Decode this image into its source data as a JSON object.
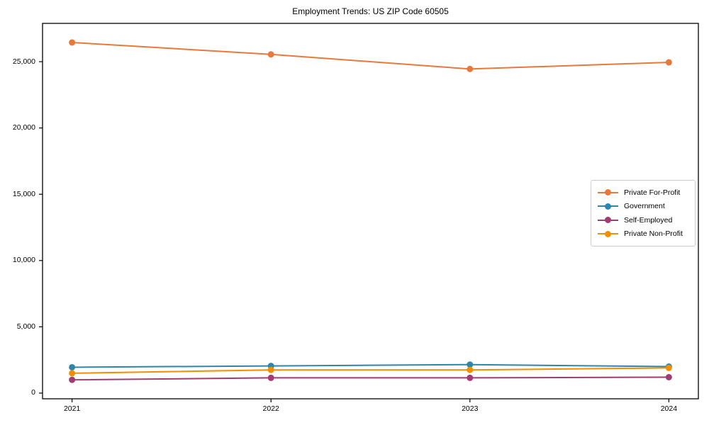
{
  "title": "Employment Trends: US ZIP Code 60505",
  "chart_data": {
    "type": "line",
    "title": "Employment Trends: US ZIP Code 60505",
    "xlabel": "",
    "ylabel": "",
    "categories": [
      "2021",
      "2022",
      "2023",
      "2024"
    ],
    "series": [
      {
        "name": "Private For-Profit",
        "color": "#E8793D",
        "values": [
          26450,
          25550,
          24450,
          24950
        ]
      },
      {
        "name": "Government",
        "color": "#2E86AB",
        "values": [
          1950,
          2050,
          2150,
          2000
        ]
      },
      {
        "name": "Self-Employed",
        "color": "#A23B72",
        "values": [
          1000,
          1150,
          1150,
          1200
        ]
      },
      {
        "name": "Private Non-Profit",
        "color": "#F18F01",
        "values": [
          1500,
          1750,
          1750,
          1900
        ]
      }
    ],
    "yticks": [
      0,
      5000,
      10000,
      15000,
      20000,
      25000
    ],
    "ytick_labels": [
      "0",
      "5,000",
      "10,000",
      "15,000",
      "20,000",
      "25,000"
    ],
    "ylim": [
      -430,
      27890
    ],
    "grid": false,
    "marker": "circle",
    "legend_position": "center-right",
    "spine_color": "#000000",
    "tick_color": "#000000"
  }
}
